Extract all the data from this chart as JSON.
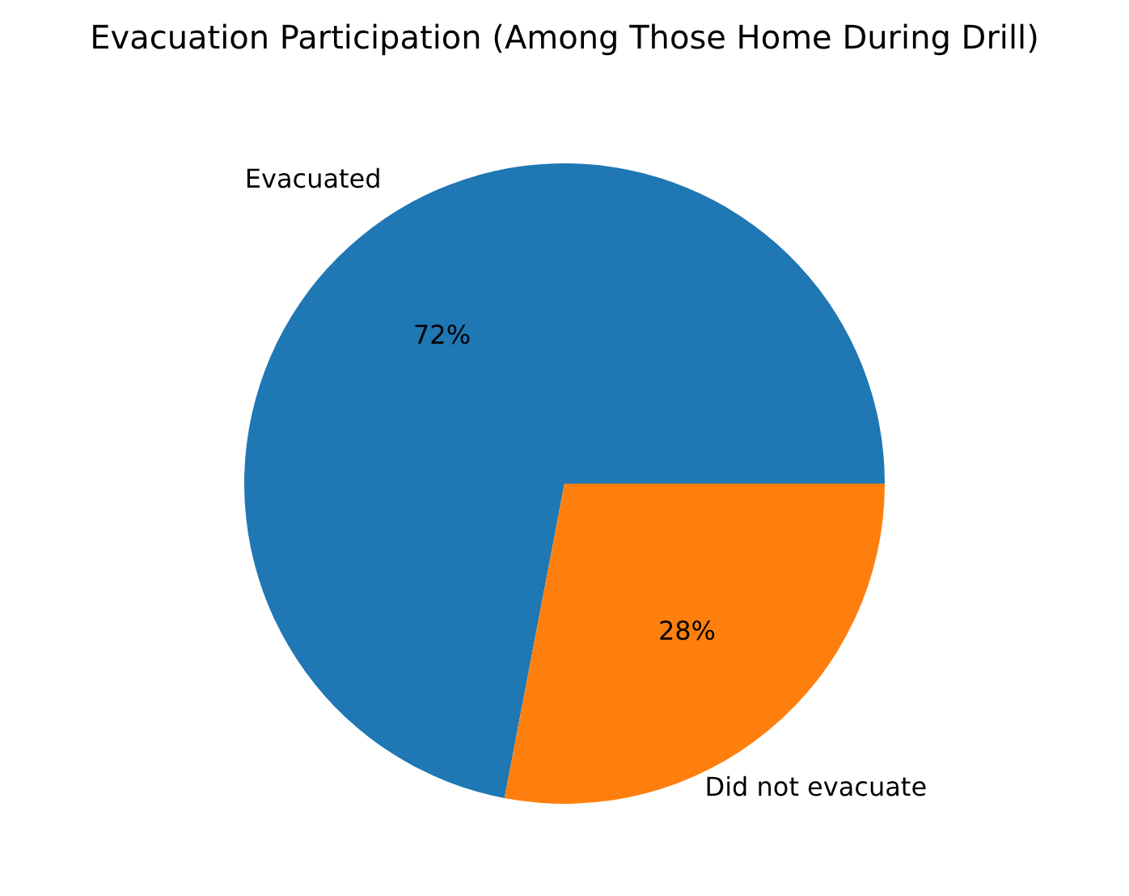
{
  "chart_data": {
    "type": "pie",
    "title": "Evacuation Participation (Among Those Home During Drill)",
    "categories": [
      "Evacuated",
      "Did not evacuate"
    ],
    "values": [
      72,
      28
    ],
    "colors": [
      "#1f77b4",
      "#ff7f0e"
    ],
    "value_labels": [
      "72%",
      "28%"
    ]
  }
}
